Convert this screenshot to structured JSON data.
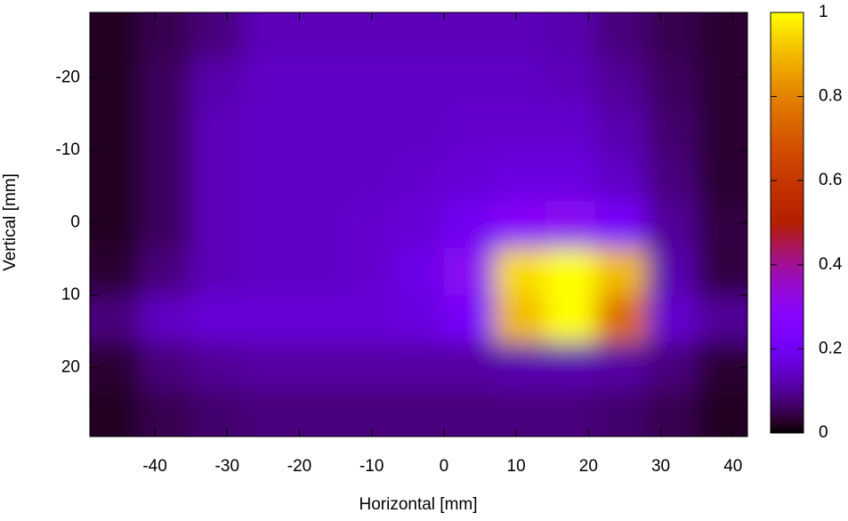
{
  "chart_data": {
    "type": "heatmap",
    "xlabel": "Horizontal [mm]",
    "ylabel": "Vertical [mm]",
    "colormap": "gnuplot",
    "xlim": [
      -49,
      42
    ],
    "ylim": [
      -29,
      29.5
    ],
    "y_reversed": true,
    "xticks": [
      -40,
      -30,
      -20,
      -10,
      0,
      10,
      20,
      30,
      40
    ],
    "yticks": [
      -20,
      -10,
      0,
      10,
      20
    ],
    "clim": [
      0,
      1
    ],
    "cticks": [
      0,
      0.2,
      0.4,
      0.6,
      0.8,
      1
    ],
    "x": [
      -45.5,
      -38.5,
      -31.5,
      -24.5,
      -17.5,
      -10.5,
      -3.5,
      3.5,
      10.5,
      17.5,
      24.5,
      31.5,
      38.5
    ],
    "y": [
      -25.75,
      -19.25,
      -12.75,
      -6.25,
      0.25,
      6.75,
      13.25,
      19.75,
      26.25
    ],
    "z": [
      [
        0.02,
        0.05,
        0.08,
        0.13,
        0.13,
        0.13,
        0.13,
        0.13,
        0.13,
        0.12,
        0.08,
        0.05,
        0.03
      ],
      [
        0.02,
        0.06,
        0.12,
        0.14,
        0.14,
        0.14,
        0.14,
        0.14,
        0.14,
        0.13,
        0.1,
        0.06,
        0.03
      ],
      [
        0.02,
        0.06,
        0.13,
        0.14,
        0.14,
        0.14,
        0.14,
        0.15,
        0.15,
        0.15,
        0.12,
        0.07,
        0.03
      ],
      [
        0.02,
        0.06,
        0.13,
        0.14,
        0.14,
        0.14,
        0.15,
        0.16,
        0.17,
        0.17,
        0.14,
        0.08,
        0.03
      ],
      [
        0.02,
        0.06,
        0.13,
        0.14,
        0.14,
        0.15,
        0.16,
        0.2,
        0.28,
        0.3,
        0.22,
        0.1,
        0.04
      ],
      [
        0.03,
        0.08,
        0.13,
        0.14,
        0.14,
        0.15,
        0.18,
        0.3,
        0.95,
        1,
        0.9,
        0.12,
        0.04
      ],
      [
        0.08,
        0.14,
        0.16,
        0.16,
        0.16,
        0.16,
        0.17,
        0.22,
        0.9,
        1,
        0.75,
        0.15,
        0.1
      ],
      [
        0.03,
        0.08,
        0.1,
        0.11,
        0.11,
        0.11,
        0.11,
        0.11,
        0.12,
        0.12,
        0.11,
        0.08,
        0.03
      ],
      [
        0.02,
        0.05,
        0.07,
        0.08,
        0.08,
        0.08,
        0.08,
        0.08,
        0.08,
        0.08,
        0.07,
        0.05,
        0.02
      ]
    ]
  }
}
